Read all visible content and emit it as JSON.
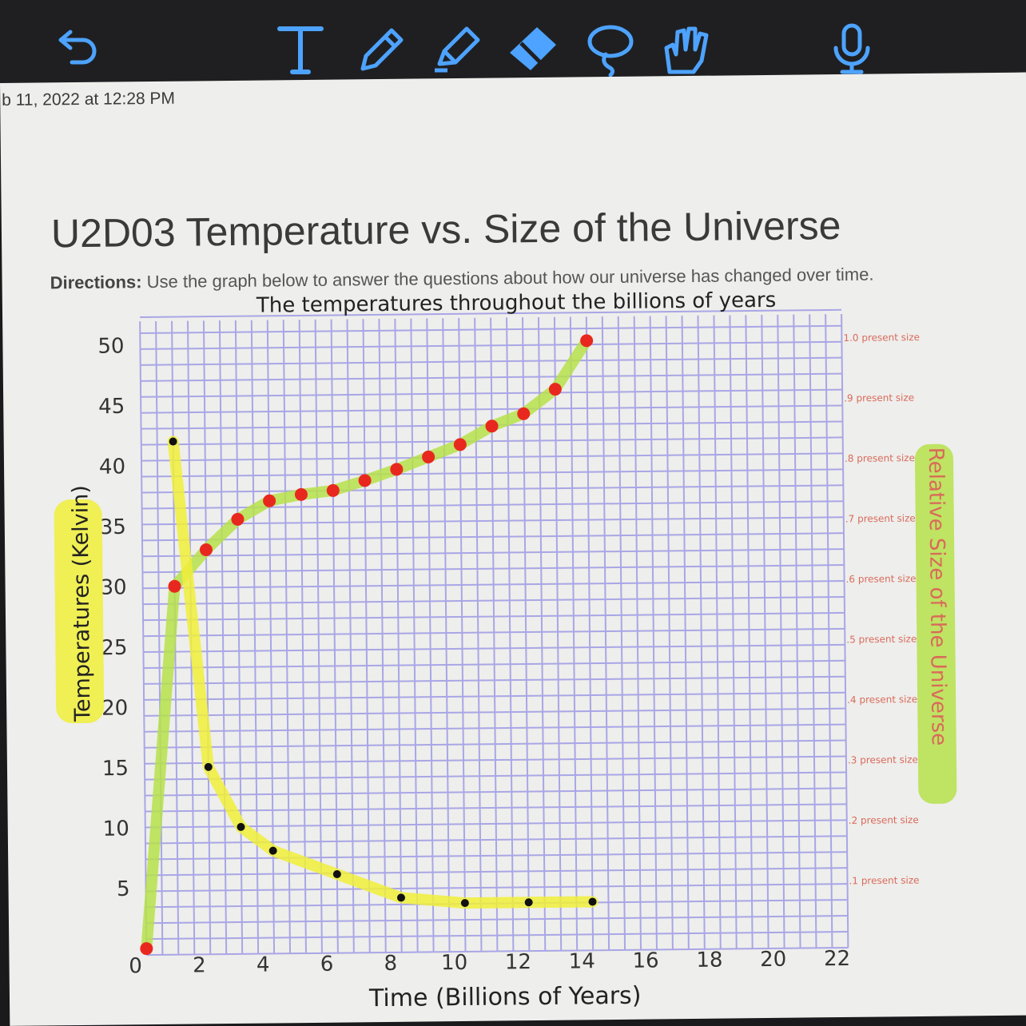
{
  "toolbar": {
    "tools": [
      "undo-icon",
      "text-tool-icon",
      "pen-tool-icon",
      "highlighter-tool-icon",
      "eraser-tool-icon",
      "lasso-tool-icon",
      "hand-tool-icon",
      "microphone-icon"
    ]
  },
  "document": {
    "timestamp": "b 11, 2022 at 12:28 PM",
    "title": "U2D03 Temperature vs. Size of the Universe",
    "directions_label": "Directions:",
    "directions_text": " Use the graph below to answer the questions about how our universe has changed over time."
  },
  "colors": {
    "grid": "#a9a6e6",
    "highlight_green": "#b6e04a",
    "highlight_yellow": "#f0ee3a",
    "red_point": "#e8281f",
    "black_point": "#111111",
    "pink_label": "#d96a5a"
  },
  "chart_data": {
    "type": "scatter",
    "title": "The temperatures throughout the billions of years",
    "xlabel": "Time (Billions of Years)",
    "ylabel": "Temperatures (Kelvin)",
    "y2label": "Relative Size of the Universe",
    "xlim": [
      0,
      22
    ],
    "ylim": [
      0,
      50
    ],
    "x_ticks": [
      "0",
      "2",
      "4",
      "6",
      "8",
      "10",
      "12",
      "14",
      "16",
      "18",
      "20",
      "22"
    ],
    "y_ticks": [
      "5",
      "10",
      "15",
      "20",
      "25",
      "30",
      "35",
      "40",
      "45",
      "50"
    ],
    "y2_ticks": [
      ".1 present size",
      ".2 present size",
      ".3 present size",
      ".4 present size",
      ".5 present size",
      ".6 present size",
      ".7 present size",
      ".8 present size",
      ".9 present size",
      "1.0 present size"
    ],
    "series": [
      {
        "color": "red",
        "highlight": "green",
        "x": [
          0,
          1,
          2,
          3,
          4,
          5,
          6,
          7,
          8,
          9,
          10,
          11,
          12,
          13,
          14
        ],
        "y": [
          0,
          30,
          33,
          35.5,
          37,
          37.5,
          37.8,
          38.6,
          39.5,
          40.5,
          41.5,
          43,
          44,
          46,
          50
        ]
      },
      {
        "color": "black",
        "highlight": "yellow",
        "x": [
          1,
          2,
          3,
          4,
          6,
          8,
          10,
          12,
          14
        ],
        "y": [
          42,
          15,
          10,
          8,
          6,
          4,
          3.5,
          3.5,
          3.5
        ]
      }
    ]
  }
}
